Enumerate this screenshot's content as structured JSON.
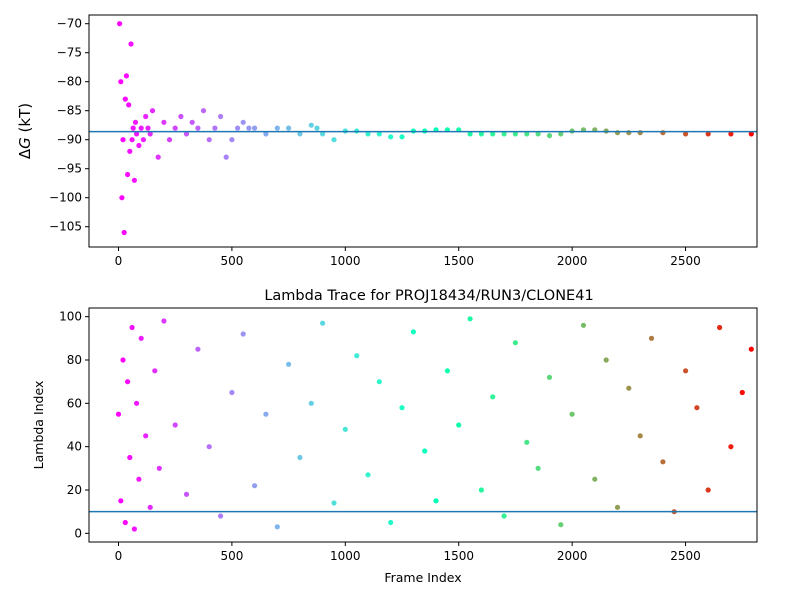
{
  "chart_data": [
    {
      "type": "scatter",
      "title": "",
      "xlabel": "",
      "ylabel_prefix": "Δ",
      "ylabel_var": "G",
      "ylabel_suffix": " (kT)",
      "xlim": [
        -130,
        2815
      ],
      "ylim": [
        -108.5,
        -68.5
      ],
      "xticks": [
        0,
        500,
        1000,
        1500,
        2000,
        2500
      ],
      "yticks": [
        -105,
        -100,
        -95,
        -90,
        -85,
        -80,
        -75,
        -70
      ],
      "xtick_labels": [
        "0",
        "500",
        "1000",
        "1500",
        "2000",
        "2500"
      ],
      "ytick_labels": [
        "−105",
        "−100",
        "−95",
        "−90",
        "−85",
        "−80",
        "−75",
        "−70"
      ],
      "reference_line": -88.6,
      "reference_color": "#1f77b4",
      "colormap": "rainbow",
      "n_frames": 2795,
      "series": [
        {
          "x": [
            5,
            10,
            15,
            20,
            25,
            30,
            35,
            40,
            45,
            50,
            55,
            60,
            65,
            70,
            75,
            80,
            90,
            100,
            110,
            120,
            130,
            140,
            150,
            175,
            200,
            225,
            250,
            275,
            300,
            325,
            350,
            375,
            400,
            425,
            450,
            475,
            500,
            525,
            550,
            575,
            600,
            650,
            700,
            750,
            800,
            850,
            875,
            900,
            950,
            1000,
            1050,
            1100,
            1150,
            1200,
            1250,
            1300,
            1350,
            1400,
            1450,
            1500,
            1550,
            1600,
            1650,
            1700,
            1750,
            1800,
            1850,
            1900,
            1950,
            2000,
            2050,
            2100,
            2150,
            2200,
            2250,
            2300,
            2400,
            2500,
            2600,
            2700,
            2790
          ],
          "y": [
            -70,
            -80,
            -100,
            -90,
            -106,
            -83,
            -79,
            -96,
            -84,
            -92,
            -73.5,
            -90,
            -88,
            -97,
            -87,
            -89,
            -91,
            -88,
            -90,
            -86,
            -88,
            -89,
            -85,
            -93,
            -87,
            -90,
            -88,
            -86,
            -89,
            -87,
            -88,
            -85,
            -90,
            -88,
            -86,
            -93,
            -90,
            -88,
            -87,
            -88,
            -88,
            -89,
            -88,
            -88,
            -89,
            -87.5,
            -88,
            -89,
            -90,
            -88.5,
            -88.5,
            -89,
            -89,
            -89.5,
            -89.5,
            -88.5,
            -88.5,
            -88.3,
            -88.3,
            -88.3,
            -89,
            -89,
            -89,
            -89,
            -89,
            -89,
            -89,
            -89.3,
            -89,
            -88.5,
            -88.3,
            -88.3,
            -88.5,
            -88.8,
            -88.8,
            -88.8,
            -88.8,
            -89,
            -89,
            -89,
            -89
          ]
        }
      ]
    },
    {
      "type": "scatter",
      "title": "Lambda Trace for PROJ18434/RUN3/CLONE41",
      "xlabel": "Frame Index",
      "ylabel": "Lambda Index",
      "xlim": [
        -130,
        2815
      ],
      "ylim": [
        -4,
        104
      ],
      "xticks": [
        0,
        500,
        1000,
        1500,
        2000,
        2500
      ],
      "yticks": [
        0,
        20,
        40,
        60,
        80,
        100
      ],
      "xtick_labels": [
        "0",
        "500",
        "1000",
        "1500",
        "2000",
        "2500"
      ],
      "ytick_labels": [
        "0",
        "20",
        "40",
        "60",
        "80",
        "100"
      ],
      "reference_line": 10,
      "reference_color": "#1f77b4",
      "colormap": "rainbow",
      "n_frames": 2795,
      "series": [
        {
          "x": [
            0,
            10,
            20,
            30,
            40,
            50,
            60,
            70,
            80,
            90,
            100,
            120,
            140,
            160,
            180,
            200,
            250,
            300,
            350,
            400,
            450,
            500,
            550,
            600,
            650,
            700,
            750,
            800,
            850,
            900,
            950,
            1000,
            1050,
            1100,
            1150,
            1200,
            1250,
            1300,
            1350,
            1400,
            1450,
            1500,
            1550,
            1600,
            1650,
            1700,
            1750,
            1800,
            1850,
            1900,
            1950,
            2000,
            2050,
            2100,
            2150,
            2200,
            2250,
            2300,
            2350,
            2400,
            2450,
            2500,
            2550,
            2600,
            2650,
            2700,
            2750,
            2790
          ],
          "y": [
            55,
            15,
            80,
            5,
            70,
            35,
            95,
            2,
            60,
            25,
            90,
            45,
            12,
            75,
            30,
            98,
            50,
            18,
            85,
            40,
            8,
            65,
            92,
            22,
            55,
            3,
            78,
            35,
            60,
            97,
            14,
            48,
            82,
            27,
            70,
            5,
            58,
            93,
            38,
            15,
            75,
            50,
            99,
            20,
            63,
            8,
            88,
            42,
            30,
            72,
            4,
            55,
            96,
            25,
            80,
            12,
            67,
            45,
            90,
            33,
            10,
            75,
            58,
            20,
            95,
            40,
            65,
            85
          ]
        }
      ]
    }
  ]
}
